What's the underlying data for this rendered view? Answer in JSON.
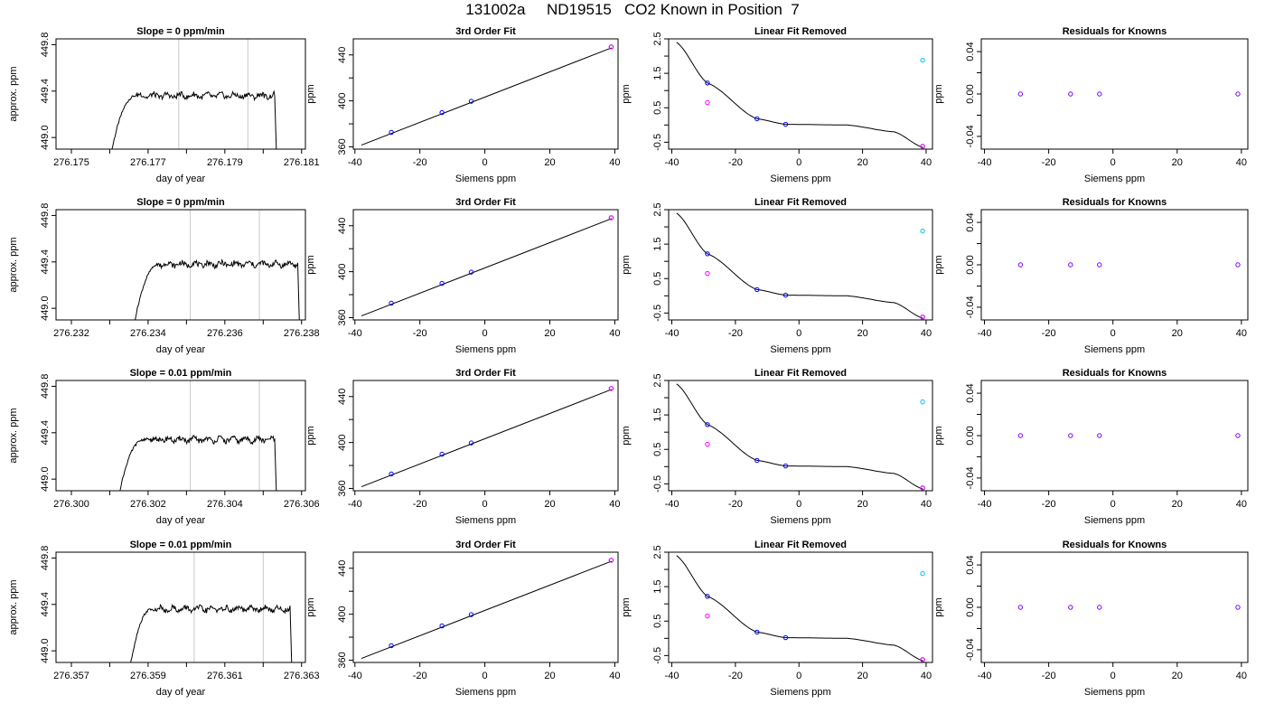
{
  "figure": {
    "title": "131002a     ND19515   CO2 Known in Position  7"
  },
  "colors": {
    "trace": "#000000",
    "window_lines": "#c8c8c8",
    "points_blue": "#0000ff",
    "points_magenta": "#ff00ff",
    "points_cyan": "#00bfff",
    "points_purple": "#7a00ff"
  },
  "chart_data": [
    {
      "type": "line",
      "row": 0,
      "title": "Slope =  0  ppm/min",
      "xlabel": "day of year",
      "ylabel": "approx. ppm",
      "xlim": [
        276.1746,
        276.1811
      ],
      "ylim": [
        448.9,
        449.85
      ],
      "xticks": [
        "276.175",
        "276.177",
        "276.179",
        "276.181"
      ],
      "xticks_minor": [
        276.176,
        276.178,
        276.18
      ],
      "yticks": [
        "449.0",
        "449.4",
        "449.8"
      ],
      "vlines": [
        276.1778,
        276.1796
      ],
      "trace": {
        "start": 276.176,
        "rise_end": 276.1767,
        "end": 276.1803,
        "base": 448.8,
        "plateau": 449.36
      }
    },
    {
      "type": "line",
      "row": 0,
      "title": "3rd Order Fit",
      "xlabel": "Siemens ppm",
      "ylabel": "ppm",
      "xlim": [
        -40.5,
        41
      ],
      "ylim": [
        358,
        454
      ],
      "xticks": [
        "-40",
        "-20",
        "0",
        "20",
        "40"
      ],
      "yticks": [
        "360",
        "400",
        "440"
      ],
      "yticks_minor": [
        380,
        420
      ],
      "fit": {
        "x0": -38,
        "x1": 39,
        "y_at_x0": 361.5,
        "slope": 1.1
      },
      "points": [
        {
          "x": -28.8,
          "y": 372.6
        },
        {
          "x": -13.2,
          "y": 389.8
        },
        {
          "x": -4.2,
          "y": 399.6
        },
        {
          "x": 38.9,
          "y": 447
        }
      ],
      "points_b": [
        {
          "x": 38.9,
          "y": 447
        }
      ]
    },
    {
      "type": "line",
      "row": 0,
      "title": "Linear Fit Removed",
      "xlabel": "Siemens ppm",
      "ylabel": "ppm",
      "xlim": [
        -41,
        42
      ],
      "ylim": [
        -0.7,
        2.5
      ],
      "xticks": [
        "-40",
        "-20",
        "0",
        "20",
        "40"
      ],
      "yticks": [
        "-0.5",
        "0.5",
        "1.5",
        "2.5"
      ],
      "yticks_minor": [
        0,
        1,
        2
      ],
      "curve": {
        "a": 0.016,
        "b": 0.00036,
        "c": -1.38e-05,
        "d": 0.0,
        "x0": -38.5,
        "x1": 39,
        "shift": 0
      },
      "points": [
        {
          "x": -28.8,
          "y": 1.22
        },
        {
          "x": -13.2,
          "y": 0.18
        },
        {
          "x": -4.2,
          "y": 0.02
        },
        {
          "x": 38.9,
          "y": -0.62
        }
      ],
      "points_b": [
        {
          "x": -28.8,
          "y": 0.65
        },
        {
          "x": 38.9,
          "y": -0.62
        }
      ],
      "points_c": [
        {
          "x": 38.9,
          "y": 1.88
        }
      ]
    },
    {
      "type": "scatter",
      "row": 0,
      "title": "Residuals for Knowns",
      "xlabel": "Siemens ppm",
      "ylabel": "ppm",
      "xlim": [
        -41,
        42
      ],
      "ylim": [
        -0.052,
        0.052
      ],
      "xticks": [
        "-40",
        "-20",
        "0",
        "20",
        "40"
      ],
      "yticks": [
        "-0.04",
        "0.00",
        "0.04"
      ],
      "yticks_minor": [
        -0.02,
        0.02
      ],
      "points": [
        {
          "x": -28.8,
          "y": 0
        },
        {
          "x": -13.2,
          "y": 0
        },
        {
          "x": -4.2,
          "y": 0
        },
        {
          "x": 38.9,
          "y": 0
        }
      ]
    },
    {
      "type": "line",
      "row": 1,
      "title": "Slope =  0  ppm/min",
      "xlabel": "day of year",
      "ylabel": "approx. ppm",
      "xlim": [
        276.2316,
        276.2381
      ],
      "ylim": [
        448.9,
        449.85
      ],
      "xticks": [
        "276.232",
        "276.234",
        "276.236",
        "276.238"
      ],
      "xticks_minor": [
        276.233,
        276.235,
        276.237
      ],
      "yticks": [
        "449.0",
        "449.4",
        "449.8"
      ],
      "vlines": [
        276.2351,
        276.2369
      ],
      "trace": {
        "start": 276.2336,
        "rise_end": 276.2343,
        "end": 276.2379,
        "base": 448.8,
        "plateau": 449.38
      }
    },
    {
      "type": "line",
      "row": 1,
      "title": "3rd Order Fit",
      "xlabel": "Siemens ppm",
      "ylabel": "ppm",
      "xlim": [
        -40.5,
        41
      ],
      "ylim": [
        358,
        454
      ],
      "xticks": [
        "-40",
        "-20",
        "0",
        "20",
        "40"
      ],
      "yticks": [
        "360",
        "400",
        "440"
      ],
      "yticks_minor": [
        380,
        420
      ],
      "fit": {
        "x0": -38,
        "x1": 39,
        "y_at_x0": 361.5,
        "slope": 1.1
      },
      "points": [
        {
          "x": -28.8,
          "y": 372.6
        },
        {
          "x": -13.2,
          "y": 389.8
        },
        {
          "x": -4.2,
          "y": 399.6
        },
        {
          "x": 38.9,
          "y": 447
        }
      ],
      "points_b": [
        {
          "x": 38.9,
          "y": 447
        }
      ]
    },
    {
      "type": "line",
      "row": 1,
      "title": "Linear Fit Removed",
      "xlabel": "Siemens ppm",
      "ylabel": "ppm",
      "xlim": [
        -41,
        42
      ],
      "ylim": [
        -0.7,
        2.5
      ],
      "xticks": [
        "-40",
        "-20",
        "0",
        "20",
        "40"
      ],
      "yticks": [
        "-0.5",
        "0.5",
        "1.5",
        "2.5"
      ],
      "yticks_minor": [
        0,
        1,
        2
      ],
      "curve": {
        "x0": -38.5,
        "x1": 39
      },
      "points": [
        {
          "x": -28.8,
          "y": 1.22
        },
        {
          "x": -13.2,
          "y": 0.18
        },
        {
          "x": -4.2,
          "y": 0.02
        },
        {
          "x": 38.9,
          "y": -0.62
        }
      ],
      "points_b": [
        {
          "x": -28.8,
          "y": 0.65
        },
        {
          "x": 38.9,
          "y": -0.62
        }
      ],
      "points_c": [
        {
          "x": 38.9,
          "y": 1.88
        }
      ]
    },
    {
      "type": "scatter",
      "row": 1,
      "title": "Residuals for Knowns",
      "xlabel": "Siemens ppm",
      "ylabel": "ppm",
      "xlim": [
        -41,
        42
      ],
      "ylim": [
        -0.052,
        0.052
      ],
      "xticks": [
        "-40",
        "-20",
        "0",
        "20",
        "40"
      ],
      "yticks": [
        "-0.04",
        "0.00",
        "0.04"
      ],
      "yticks_minor": [
        -0.02,
        0.02
      ],
      "points": [
        {
          "x": -28.8,
          "y": 0
        },
        {
          "x": -13.2,
          "y": 0
        },
        {
          "x": -4.2,
          "y": 0
        },
        {
          "x": 38.9,
          "y": 0
        }
      ]
    },
    {
      "type": "line",
      "row": 2,
      "title": "Slope =  0.01  ppm/min",
      "xlabel": "day of year",
      "ylabel": "approx. ppm",
      "xlim": [
        276.2996,
        276.3061
      ],
      "ylim": [
        448.9,
        449.85
      ],
      "xticks": [
        "276.300",
        "276.302",
        "276.304",
        "276.306"
      ],
      "xticks_minor": [
        276.301,
        276.303,
        276.305
      ],
      "yticks": [
        "449.0",
        "449.4",
        "449.8"
      ],
      "vlines": [
        276.3031,
        276.3049
      ],
      "trace": {
        "start": 276.3012,
        "rise_end": 276.3019,
        "end": 276.3053,
        "base": 448.8,
        "plateau": 449.34
      }
    },
    {
      "type": "line",
      "row": 2,
      "title": "3rd Order Fit",
      "xlabel": "Siemens ppm",
      "ylabel": "ppm",
      "xlim": [
        -40.5,
        41
      ],
      "ylim": [
        358,
        454
      ],
      "xticks": [
        "-40",
        "-20",
        "0",
        "20",
        "40"
      ],
      "yticks": [
        "360",
        "400",
        "440"
      ],
      "yticks_minor": [
        380,
        420
      ],
      "fit": {
        "x0": -38,
        "x1": 39,
        "y_at_x0": 361.5,
        "slope": 1.1
      },
      "points": [
        {
          "x": -28.8,
          "y": 372.6
        },
        {
          "x": -13.2,
          "y": 389.8
        },
        {
          "x": -4.2,
          "y": 399.6
        },
        {
          "x": 38.9,
          "y": 447
        }
      ],
      "points_b": [
        {
          "x": 38.9,
          "y": 447
        }
      ]
    },
    {
      "type": "line",
      "row": 2,
      "title": "Linear Fit Removed",
      "xlabel": "Siemens ppm",
      "ylabel": "ppm",
      "xlim": [
        -41,
        42
      ],
      "ylim": [
        -0.7,
        2.5
      ],
      "xticks": [
        "-40",
        "-20",
        "0",
        "20",
        "40"
      ],
      "yticks": [
        "-0.5",
        "0.5",
        "1.5",
        "2.5"
      ],
      "yticks_minor": [
        0,
        1,
        2
      ],
      "curve": {
        "x0": -38.5,
        "x1": 39
      },
      "points": [
        {
          "x": -28.8,
          "y": 1.22
        },
        {
          "x": -13.2,
          "y": 0.18
        },
        {
          "x": -4.2,
          "y": 0.02
        },
        {
          "x": 38.9,
          "y": -0.62
        }
      ],
      "points_b": [
        {
          "x": -28.8,
          "y": 0.65
        },
        {
          "x": 38.9,
          "y": -0.62
        }
      ],
      "points_c": [
        {
          "x": 38.9,
          "y": 1.88
        }
      ]
    },
    {
      "type": "scatter",
      "row": 2,
      "title": "Residuals for Knowns",
      "xlabel": "Siemens ppm",
      "ylabel": "ppm",
      "xlim": [
        -41,
        42
      ],
      "ylim": [
        -0.052,
        0.052
      ],
      "xticks": [
        "-40",
        "-20",
        "0",
        "20",
        "40"
      ],
      "yticks": [
        "-0.04",
        "0.00",
        "0.04"
      ],
      "yticks_minor": [
        -0.02,
        0.02
      ],
      "points": [
        {
          "x": -28.8,
          "y": 0
        },
        {
          "x": -13.2,
          "y": 0
        },
        {
          "x": -4.2,
          "y": 0
        },
        {
          "x": 38.9,
          "y": 0
        }
      ]
    },
    {
      "type": "line",
      "row": 3,
      "title": "Slope =  0.01  ppm/min",
      "xlabel": "day of year",
      "ylabel": "approx. ppm",
      "xlim": [
        276.3566,
        276.3631
      ],
      "ylim": [
        448.9,
        449.85
      ],
      "xticks": [
        "276.357",
        "276.359",
        "276.361",
        "276.363"
      ],
      "xticks_minor": [
        276.358,
        276.36,
        276.362
      ],
      "yticks": [
        "449.0",
        "449.4",
        "449.8"
      ],
      "vlines": [
        276.3602,
        276.362
      ],
      "trace": {
        "start": 276.3585,
        "rise_end": 276.3591,
        "end": 276.3627,
        "base": 448.8,
        "plateau": 449.36
      }
    },
    {
      "type": "line",
      "row": 3,
      "title": "3rd Order Fit",
      "xlabel": "Siemens ppm",
      "ylabel": "ppm",
      "xlim": [
        -40.5,
        41
      ],
      "ylim": [
        358,
        454
      ],
      "xticks": [
        "-40",
        "-20",
        "0",
        "20",
        "40"
      ],
      "yticks": [
        "360",
        "400",
        "440"
      ],
      "yticks_minor": [
        380,
        420
      ],
      "fit": {
        "x0": -38,
        "x1": 39,
        "y_at_x0": 361.5,
        "slope": 1.1
      },
      "points": [
        {
          "x": -28.8,
          "y": 372.6
        },
        {
          "x": -13.2,
          "y": 389.8
        },
        {
          "x": -4.2,
          "y": 399.6
        },
        {
          "x": 38.9,
          "y": 447
        }
      ],
      "points_b": [
        {
          "x": 38.9,
          "y": 447
        }
      ]
    },
    {
      "type": "line",
      "row": 3,
      "title": "Linear Fit Removed",
      "xlabel": "Siemens ppm",
      "ylabel": "ppm",
      "xlim": [
        -41,
        42
      ],
      "ylim": [
        -0.7,
        2.5
      ],
      "xticks": [
        "-40",
        "-20",
        "0",
        "20",
        "40"
      ],
      "yticks": [
        "-0.5",
        "0.5",
        "1.5",
        "2.5"
      ],
      "yticks_minor": [
        0,
        1,
        2
      ],
      "curve": {
        "x0": -38.5,
        "x1": 39
      },
      "points": [
        {
          "x": -28.8,
          "y": 1.22
        },
        {
          "x": -13.2,
          "y": 0.18
        },
        {
          "x": -4.2,
          "y": 0.02
        },
        {
          "x": 38.9,
          "y": -0.62
        }
      ],
      "points_b": [
        {
          "x": -28.8,
          "y": 0.65
        },
        {
          "x": 38.9,
          "y": -0.62
        }
      ],
      "points_c": [
        {
          "x": 38.9,
          "y": 1.88
        }
      ]
    },
    {
      "type": "scatter",
      "row": 3,
      "title": "Residuals for Knowns",
      "xlabel": "Siemens ppm",
      "ylabel": "ppm",
      "xlim": [
        -41,
        42
      ],
      "ylim": [
        -0.052,
        0.052
      ],
      "xticks": [
        "-40",
        "-20",
        "0",
        "20",
        "40"
      ],
      "yticks": [
        "-0.04",
        "0.00",
        "0.04"
      ],
      "yticks_minor": [
        -0.02,
        0.02
      ],
      "points": [
        {
          "x": -28.8,
          "y": 0
        },
        {
          "x": -13.2,
          "y": 0
        },
        {
          "x": -4.2,
          "y": 0
        },
        {
          "x": 38.9,
          "y": 0
        }
      ]
    }
  ]
}
